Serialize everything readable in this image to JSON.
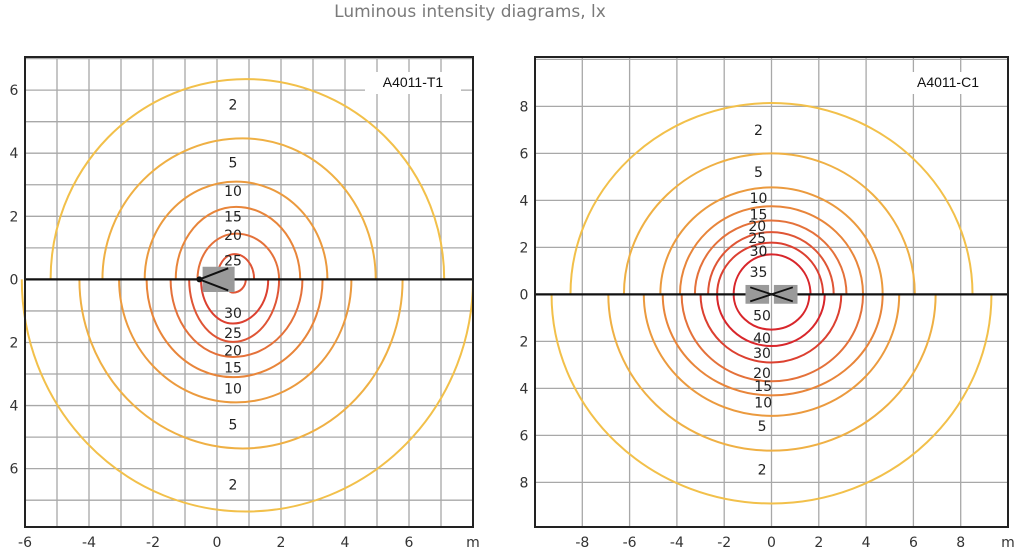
{
  "title": "Luminous intensity diagrams, lx",
  "colors": {
    "low": "#f2c04a",
    "mid": "#e8853a",
    "high": "#d8262b",
    "grid": "#a8a8a8",
    "axis": "#111111",
    "luminaire": "#9a9a9a"
  },
  "chart_data": [
    {
      "type": "contour",
      "id_label": "A4011-T1",
      "unit_label": "m",
      "xlim": [
        -6,
        8
      ],
      "ylim": [
        -7.85,
        7.05
      ],
      "grid_step": 1,
      "x_ticks": [
        -6,
        -4,
        -2,
        0,
        2,
        4,
        6
      ],
      "y_ticks": [
        {
          "v": 6,
          "t": "6"
        },
        {
          "v": 4,
          "t": "4"
        },
        {
          "v": 2,
          "t": "2"
        },
        {
          "v": 0,
          "t": "0"
        },
        {
          "v": -2,
          "t": "2"
        },
        {
          "v": -4,
          "t": "4"
        },
        {
          "v": -6,
          "t": "6"
        }
      ],
      "luminaire": "single",
      "contours_upper": [
        {
          "value": 2,
          "left": -5.2,
          "right": 7.1,
          "top": 6.35,
          "cx": 0.9
        },
        {
          "value": 5,
          "left": -3.58,
          "right": 4.96,
          "top": 4.47,
          "cx": 0.8
        },
        {
          "value": 10,
          "left": -2.26,
          "right": 3.45,
          "top": 3.1,
          "cx": 0.6
        },
        {
          "value": 15,
          "left": -1.29,
          "right": 2.6,
          "top": 2.3,
          "cx": 0.6
        },
        {
          "value": 20,
          "left": -0.61,
          "right": 1.94,
          "top": 1.45,
          "cx": 0.6
        },
        {
          "value": 25,
          "left": 0.0,
          "right": 1.16,
          "top": 0.8,
          "cx": 0.55
        }
      ],
      "contours_lower": [
        {
          "value": 2,
          "left": -6.1,
          "right": 8.0,
          "bottom": -7.36,
          "cx": 0.9
        },
        {
          "value": 5,
          "left": -4.3,
          "right": 5.8,
          "bottom": -5.36,
          "cx": 0.8
        },
        {
          "value": 10,
          "left": -3.06,
          "right": 4.2,
          "bottom": -3.9,
          "cx": 0.6
        },
        {
          "value": 15,
          "left": -2.2,
          "right": 3.3,
          "bottom": -3.1,
          "cx": 0.5
        },
        {
          "value": 20,
          "left": -1.45,
          "right": 2.67,
          "bottom": -2.46,
          "cx": 0.5
        },
        {
          "value": 25,
          "left": -0.87,
          "right": 1.94,
          "bottom": -1.98,
          "cx": 0.5
        },
        {
          "value": 30,
          "left": -0.5,
          "right": 1.6,
          "bottom": -1.4,
          "cx": 0.5
        },
        {
          "value": 25,
          "left": 0.25,
          "right": 0.9,
          "bottom": -0.42,
          "cx": 0.5
        }
      ],
      "labels": [
        {
          "t": "2",
          "x": 0.5,
          "y": 5.55
        },
        {
          "t": "5",
          "x": 0.5,
          "y": 3.7
        },
        {
          "t": "10",
          "x": 0.5,
          "y": 2.8
        },
        {
          "t": "15",
          "x": 0.5,
          "y": 2.0
        },
        {
          "t": "20",
          "x": 0.5,
          "y": 1.4
        },
        {
          "t": "25",
          "x": 0.5,
          "y": 0.6
        },
        {
          "t": "30",
          "x": 0.5,
          "y": -1.07
        },
        {
          "t": "25",
          "x": 0.5,
          "y": -1.7
        },
        {
          "t": "20",
          "x": 0.5,
          "y": -2.25
        },
        {
          "t": "15",
          "x": 0.5,
          "y": -2.8
        },
        {
          "t": "10",
          "x": 0.5,
          "y": -3.46
        },
        {
          "t": "5",
          "x": 0.5,
          "y": -4.6
        },
        {
          "t": "2",
          "x": 0.5,
          "y": -6.5
        }
      ]
    },
    {
      "type": "contour",
      "id_label": "A4011-C1",
      "unit_label": "m",
      "xlim": [
        -10,
        10
      ],
      "ylim": [
        -9.9,
        10.1
      ],
      "grid_step": 2,
      "x_ticks": [
        -8,
        -6,
        -4,
        -2,
        0,
        2,
        4,
        6,
        8
      ],
      "y_ticks": [
        {
          "v": 8,
          "t": "8"
        },
        {
          "v": 6,
          "t": "6"
        },
        {
          "v": 4,
          "t": "4"
        },
        {
          "v": 2,
          "t": "2"
        },
        {
          "v": 0,
          "t": "0"
        },
        {
          "v": -2,
          "t": "2"
        },
        {
          "v": -4,
          "t": "4"
        },
        {
          "v": -6,
          "t": "6"
        },
        {
          "v": -8,
          "t": "8"
        }
      ],
      "luminaire": "double",
      "contours_upper": [
        {
          "value": 2,
          "left": -8.5,
          "right": 8.5,
          "top": 8.14,
          "cx": 0
        },
        {
          "value": 5,
          "left": -6.24,
          "right": 6.06,
          "top": 6.0,
          "cx": 0
        },
        {
          "value": 10,
          "left": -4.7,
          "right": 4.7,
          "top": 4.55,
          "cx": 0
        },
        {
          "value": 15,
          "left": -3.87,
          "right": 3.87,
          "top": 3.75,
          "cx": 0
        },
        {
          "value": 20,
          "left": -3.24,
          "right": 3.17,
          "top": 3.14,
          "cx": 0
        },
        {
          "value": 25,
          "left": -2.68,
          "right": 2.63,
          "top": 2.65,
          "cx": 0
        },
        {
          "value": 30,
          "left": -2.3,
          "right": 2.18,
          "top": 2.2,
          "cx": 0
        },
        {
          "value": 35,
          "left": -1.6,
          "right": 1.65,
          "top": 1.7,
          "cx": 0
        }
      ],
      "contours_lower": [
        {
          "value": 2,
          "left": -9.3,
          "right": 9.3,
          "bottom": -8.9,
          "cx": 0
        },
        {
          "value": 5,
          "left": -6.9,
          "right": 6.94,
          "bottom": -6.65,
          "cx": 0
        },
        {
          "value": 10,
          "left": -5.4,
          "right": 5.4,
          "bottom": -5.17,
          "cx": 0
        },
        {
          "value": 15,
          "left": -4.6,
          "right": 4.7,
          "bottom": -4.3,
          "cx": 0
        },
        {
          "value": 20,
          "left": -3.8,
          "right": 3.87,
          "bottom": -3.7,
          "cx": 0
        },
        {
          "value": 30,
          "left": -3.0,
          "right": 2.95,
          "bottom": -2.9,
          "cx": 0
        },
        {
          "value": 40,
          "left": -2.3,
          "right": 2.25,
          "bottom": -2.2,
          "cx": 0
        },
        {
          "value": 50,
          "left": -1.6,
          "right": 1.6,
          "bottom": -1.5,
          "cx": 0
        }
      ],
      "labels": [
        {
          "t": "2",
          "x": -0.55,
          "y": 7.0
        },
        {
          "t": "5",
          "x": -0.55,
          "y": 5.2
        },
        {
          "t": "10",
          "x": -0.55,
          "y": 4.1
        },
        {
          "t": "15",
          "x": -0.55,
          "y": 3.4
        },
        {
          "t": "20",
          "x": -0.6,
          "y": 2.9
        },
        {
          "t": "25",
          "x": -0.6,
          "y": 2.4
        },
        {
          "t": "30",
          "x": -0.55,
          "y": 1.85
        },
        {
          "t": "35",
          "x": -0.55,
          "y": 0.95
        },
        {
          "t": "50",
          "x": -0.4,
          "y": -0.9
        },
        {
          "t": "40",
          "x": -0.4,
          "y": -1.85
        },
        {
          "t": "30",
          "x": -0.4,
          "y": -2.5
        },
        {
          "t": "20",
          "x": -0.4,
          "y": -3.35
        },
        {
          "t": "15",
          "x": -0.35,
          "y": -3.9
        },
        {
          "t": "10",
          "x": -0.35,
          "y": -4.6
        },
        {
          "t": "5",
          "x": -0.4,
          "y": -5.6
        },
        {
          "t": "2",
          "x": -0.4,
          "y": -7.45
        }
      ]
    }
  ]
}
